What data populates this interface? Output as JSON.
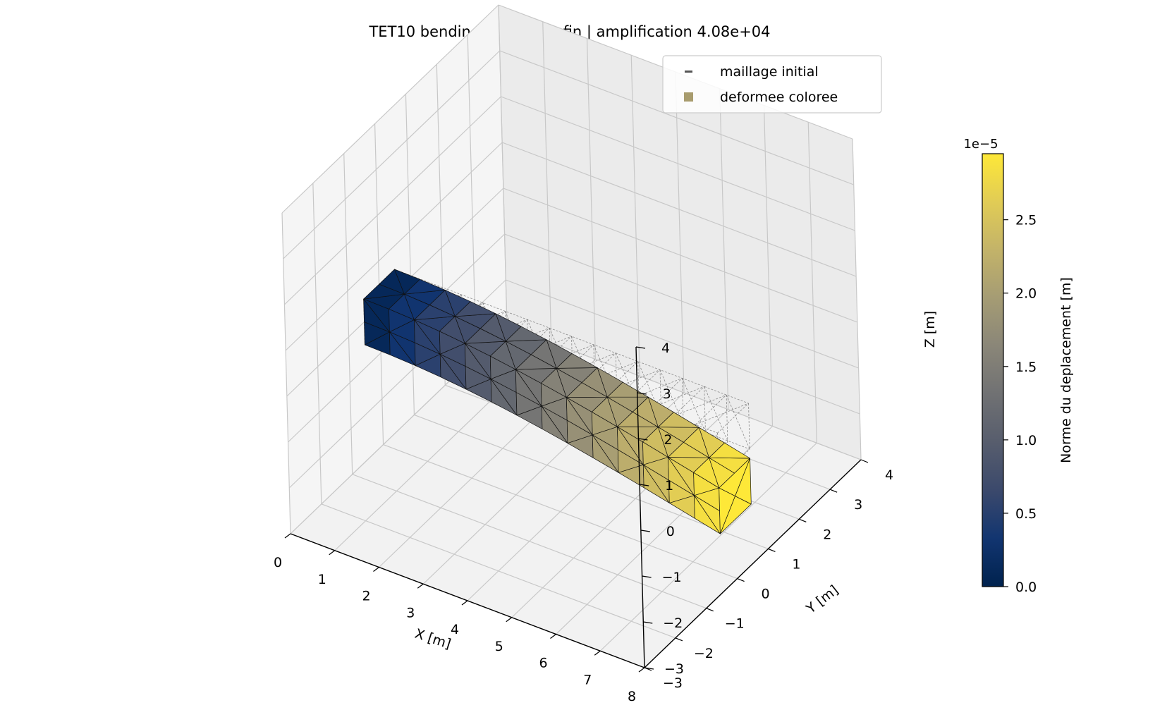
{
  "chart_data": {
    "type": "3d-surface",
    "title": "TET10 bending - maillage fin | amplification 4.08e+04",
    "xlabel": "X [m]",
    "ylabel": "Y [m]",
    "zlabel": "Z [m]",
    "xlim": [
      0,
      8
    ],
    "ylim": [
      -3,
      4
    ],
    "zlim": [
      -3,
      4
    ],
    "xticks": [
      "0",
      "1",
      "2",
      "3",
      "4",
      "5",
      "6",
      "7",
      "8"
    ],
    "yticks": [
      "−3",
      "−2",
      "−1",
      "0",
      "1",
      "2",
      "3",
      "4"
    ],
    "zticks": [
      "−3",
      "−2",
      "−1",
      "0",
      "1",
      "2",
      "3",
      "4"
    ],
    "grid": true,
    "legend_position": "top-right",
    "legend": [
      {
        "label": "maillage initial",
        "marker": "line",
        "color": "#555555"
      },
      {
        "label": "deformee coloree",
        "marker": "square",
        "color": "#a89c6e"
      }
    ],
    "beam": {
      "x_range": [
        0,
        8
      ],
      "y_range": [
        -0.5,
        0.5
      ],
      "z_range": [
        -0.5,
        0.5
      ],
      "tip_deflection_z": -1.2,
      "displacement_max": 2.95e-05
    },
    "colorbar": {
      "label": "Norme du deplacement [m]",
      "scale_label": "1e−5",
      "ticks": [
        "0.0",
        "0.5",
        "1.0",
        "1.5",
        "2.0",
        "2.5"
      ],
      "tick_values": [
        0.0,
        0.5,
        1.0,
        1.5,
        2.0,
        2.5
      ],
      "range": [
        0.0,
        2.95
      ],
      "colormap": "cividis",
      "colors": [
        "#00224e",
        "#123570",
        "#3b496c",
        "#575d6d",
        "#707173",
        "#8a8678",
        "#a59c74",
        "#c3b369",
        "#e1cc55",
        "#fee838"
      ]
    }
  }
}
